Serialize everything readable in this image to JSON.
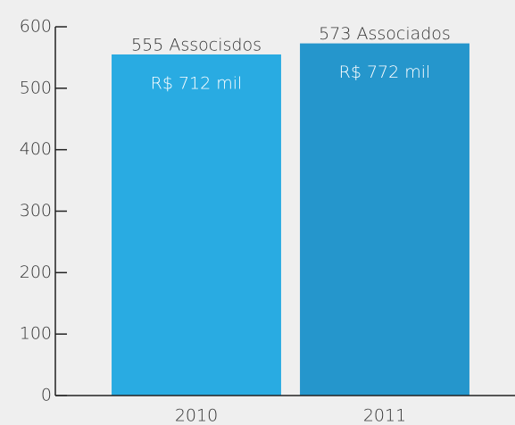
{
  "chart_data": {
    "type": "bar",
    "categories": [
      "2010",
      "2011"
    ],
    "values": [
      555,
      573
    ],
    "value_labels": [
      "555 Associsdos",
      "573 Associados"
    ],
    "inner_labels": [
      "R$ 712 mil",
      "R$ 772 mil"
    ],
    "colors": [
      "#29abe2",
      "#2596cc"
    ],
    "ylim": [
      0,
      600
    ],
    "yticks": [
      0,
      100,
      200,
      300,
      400,
      500,
      600
    ]
  }
}
